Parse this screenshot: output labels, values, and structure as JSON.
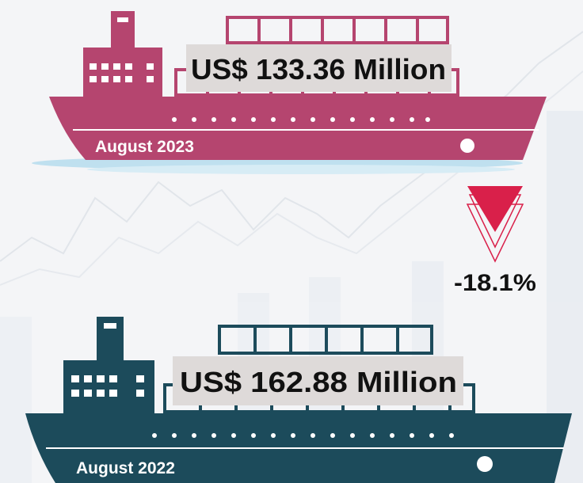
{
  "current": {
    "value_label": "US$ 133.36 Million",
    "period": "August 2023"
  },
  "change": "-18.1%",
  "previous": {
    "value_label": "US$ 162.88 Million",
    "period": "August 2022"
  }
}
